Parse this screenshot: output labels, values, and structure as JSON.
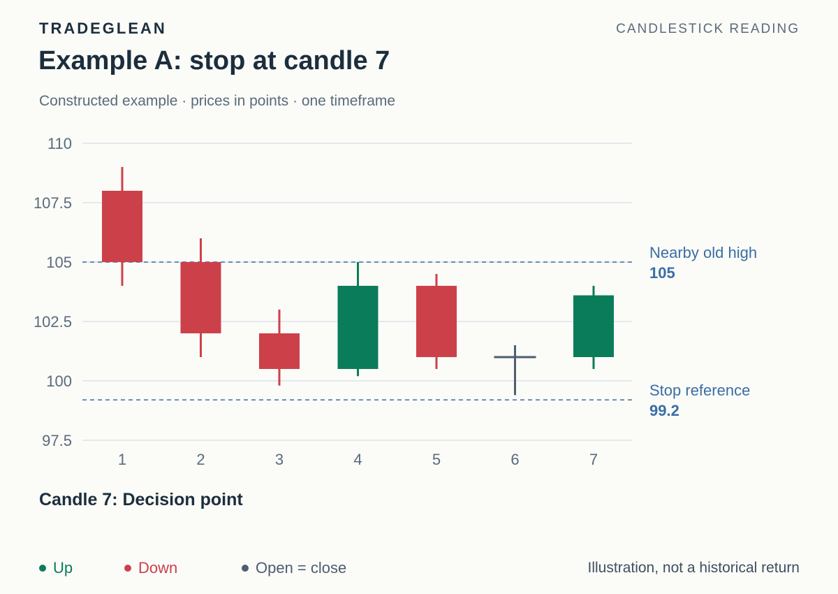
{
  "header": {
    "brand": "TRADEGLEAN",
    "kicker": "CANDLESTICK READING",
    "title": "Example A: stop at candle 7",
    "subtitle": "Constructed example · prices in points · one timeframe"
  },
  "caption": "Candle 7: Decision point",
  "legend": [
    {
      "label": "Up",
      "color": "#0b7c5a"
    },
    {
      "label": "Down",
      "color": "#cc4149"
    },
    {
      "label": "Open = close",
      "color": "#4d5e70"
    }
  ],
  "footnote": "Illustration, not a historical return",
  "chart_data": {
    "type": "candlestick",
    "ylim": [
      97.5,
      110
    ],
    "yticks": [
      97.5,
      100,
      102.5,
      105,
      107.5,
      110
    ],
    "ytick_labels": [
      "97.5",
      "100",
      "102.5",
      "105",
      "107.5",
      "110"
    ],
    "grid": true,
    "colors": {
      "up": "#0b7c5a",
      "down": "#cc4149",
      "flat": "#4d5e70",
      "reference": "#3a6ea5",
      "grid": "#dde3ea"
    },
    "candles": [
      {
        "x": "1",
        "open": 108,
        "high": 109,
        "low": 104,
        "close": 105
      },
      {
        "x": "2",
        "open": 105,
        "high": 106,
        "low": 101,
        "close": 102
      },
      {
        "x": "3",
        "open": 102,
        "high": 103,
        "low": 99.8,
        "close": 100.5
      },
      {
        "x": "4",
        "open": 100.5,
        "high": 105,
        "low": 100.2,
        "close": 104
      },
      {
        "x": "5",
        "open": 104,
        "high": 104.5,
        "low": 100.5,
        "close": 101
      },
      {
        "x": "6",
        "open": 101,
        "high": 101.5,
        "low": 99.4,
        "close": 101
      },
      {
        "x": "7",
        "open": 101,
        "high": 104,
        "low": 100.5,
        "close": 103.6
      }
    ],
    "reference_lines": [
      {
        "label": "Nearby old high",
        "value": 105,
        "value_label": "105"
      },
      {
        "label": "Stop reference",
        "value": 99.2,
        "value_label": "99.2"
      }
    ]
  }
}
